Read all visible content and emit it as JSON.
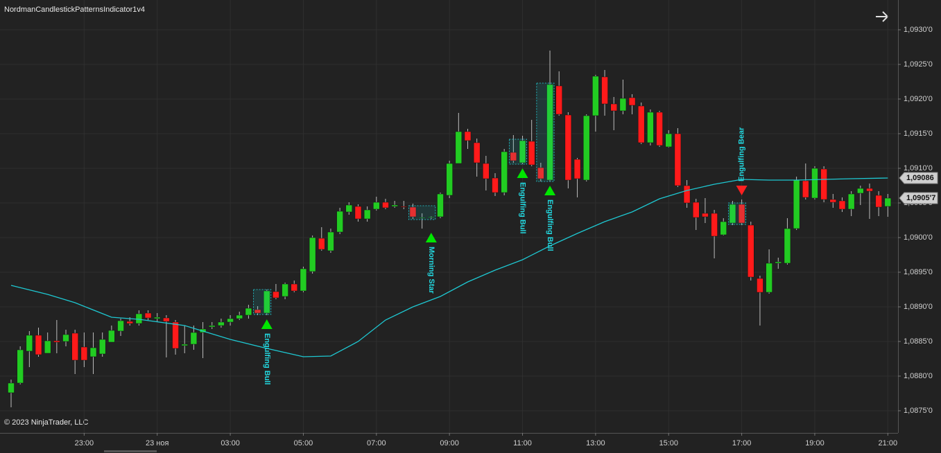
{
  "chart_data": {
    "type": "candlestick",
    "title": "NordmanCandlestickPatternsIndicator1v4",
    "copyright": "© 2023 NinjaTrader, LLC",
    "categories": [
      null,
      null,
      null,
      null,
      null,
      null,
      null,
      null,
      "23:00",
      null,
      null,
      null,
      null,
      null,
      null,
      null,
      "23 ноя",
      null,
      null,
      null,
      null,
      null,
      null,
      null,
      "03:00",
      null,
      null,
      null,
      null,
      null,
      null,
      null,
      "05:00",
      null,
      null,
      null,
      null,
      null,
      null,
      null,
      "07:00",
      null,
      null,
      null,
      null,
      null,
      null,
      null,
      "09:00",
      null,
      null,
      null,
      null,
      null,
      null,
      null,
      "11:00",
      null,
      null,
      null,
      null,
      null,
      null,
      null,
      "13:00",
      null,
      null,
      null,
      null,
      null,
      null,
      null,
      "15:00",
      null,
      null,
      null,
      null,
      null,
      null,
      null,
      "17:00",
      null,
      null,
      null,
      null,
      null,
      null,
      null,
      "19:00",
      null,
      null,
      null,
      null,
      null,
      null,
      null,
      "21:00"
    ],
    "open": [
      1.08776,
      1.0879,
      1.08836,
      1.08859,
      1.08833,
      1.08851,
      1.0885,
      1.08862,
      1.08842,
      1.08828,
      1.08832,
      1.08849,
      1.08865,
      1.08879,
      1.08876,
      1.08891,
      1.08883,
      1.08884,
      1.08878,
      1.08844,
      1.08846,
      1.08863,
      1.08871,
      1.08873,
      1.08878,
      1.08883,
      1.08888,
      1.08896,
      1.08891,
      1.08922,
      1.08915,
      1.08933,
      1.08923,
      1.08951,
      1.08999,
      1.08981,
      1.09008,
      1.09037,
      1.09045,
      1.09027,
      1.09041,
      1.09051,
      1.09045,
      1.09045,
      1.09044,
      1.09028,
      1.09029,
      1.0903,
      1.09061,
      1.09107,
      1.09153,
      1.09137,
      1.09107,
      1.09086,
      1.09065,
      1.09123,
      1.09108,
      1.09139,
      1.09101,
      1.09083,
      1.09219,
      1.09177,
      1.09113,
      1.09083,
      1.09176,
      1.09232,
      1.09193,
      1.09183,
      1.09202,
      1.0919,
      1.09137,
      1.09181,
      1.09131,
      1.0915,
      1.09075,
      1.09051,
      1.09035,
      1.09035,
      1.09004,
      1.09021,
      1.09048,
      1.09018,
      1.08941,
      1.08921,
      1.08963,
      1.08963,
      1.09013,
      1.09082,
      1.09057,
      1.09099,
      1.09055,
      1.09053,
      1.09041,
      1.09064,
      1.09071,
      1.09061,
      1.09045
    ],
    "high": [
      1.08795,
      1.08843,
      1.08865,
      1.0887,
      1.08863,
      1.08881,
      1.08867,
      1.08867,
      1.08863,
      1.08863,
      1.08863,
      1.08873,
      1.08883,
      1.08885,
      1.08895,
      1.08895,
      1.08891,
      1.08888,
      1.08881,
      1.08873,
      1.08873,
      1.08878,
      1.08878,
      1.08883,
      1.08888,
      1.08893,
      1.08903,
      1.08901,
      1.08925,
      1.08933,
      1.08935,
      1.08938,
      1.08958,
      1.09003,
      1.09015,
      1.09013,
      1.09043,
      1.09051,
      1.09048,
      1.09045,
      1.09059,
      1.09056,
      1.09053,
      1.09053,
      1.09049,
      1.09035,
      1.09031,
      1.09065,
      1.09111,
      1.0918,
      1.09157,
      1.09143,
      1.09118,
      1.09093,
      1.09128,
      1.09148,
      1.09147,
      1.0917,
      1.09108,
      1.0927,
      1.0924,
      1.09181,
      1.09115,
      1.09178,
      1.09235,
      1.09242,
      1.09203,
      1.09228,
      1.09207,
      1.09195,
      1.09185,
      1.09183,
      1.09155,
      1.09158,
      1.09083,
      1.09056,
      1.09057,
      1.0904,
      1.09028,
      1.09053,
      1.09055,
      1.09023,
      1.08945,
      1.08983,
      1.08971,
      1.09028,
      1.09088,
      1.09107,
      1.09103,
      1.09103,
      1.09063,
      1.09058,
      1.09067,
      1.09075,
      1.09078,
      1.09067,
      1.09063
    ],
    "low": [
      1.08755,
      1.08788,
      1.08813,
      1.08828,
      1.08833,
      1.08833,
      1.08843,
      1.08803,
      1.08813,
      1.08803,
      1.08828,
      1.08849,
      1.08858,
      1.08873,
      1.08873,
      1.08881,
      1.08878,
      1.08827,
      1.08831,
      1.08833,
      1.08838,
      1.08826,
      1.08868,
      1.0887,
      1.08873,
      1.08881,
      1.08883,
      1.08888,
      1.08888,
      1.08911,
      1.08911,
      1.08921,
      1.08921,
      1.08948,
      1.08981,
      1.08978,
      1.09005,
      1.09033,
      1.09023,
      1.09023,
      1.09039,
      1.09041,
      1.09043,
      1.09041,
      1.09027,
      1.09013,
      1.09027,
      1.09028,
      1.09057,
      1.09107,
      1.09128,
      1.09088,
      1.09068,
      1.0906,
      1.09061,
      1.09108,
      1.09106,
      1.09103,
      1.09081,
      1.09081,
      1.09176,
      1.09071,
      1.09058,
      1.09081,
      1.09153,
      1.09176,
      1.09155,
      1.09178,
      1.09178,
      1.09135,
      1.09133,
      1.09131,
      1.0913,
      1.09073,
      1.09043,
      1.09011,
      1.09021,
      1.0897,
      1.09003,
      1.09018,
      1.09018,
      1.08938,
      1.08873,
      1.08919,
      1.08955,
      1.08961,
      1.09011,
      1.09055,
      1.09055,
      1.09051,
      1.09043,
      1.09037,
      1.09031,
      1.09047,
      1.09027,
      1.09031,
      1.0903
    ],
    "close": [
      1.0879,
      1.08838,
      1.08859,
      1.08831,
      1.08851,
      1.08849,
      1.0886,
      1.08823,
      1.08823,
      1.08841,
      1.08853,
      1.08866,
      1.0888,
      1.08876,
      1.0889,
      1.08884,
      1.08885,
      1.08879,
      1.0884,
      1.08846,
      1.08863,
      1.08868,
      1.08873,
      1.08878,
      1.08883,
      1.08888,
      1.08898,
      1.08891,
      1.08923,
      1.08913,
      1.08933,
      1.08923,
      1.08955,
      1.09,
      1.08983,
      1.09008,
      1.09038,
      1.09047,
      1.09027,
      1.0904,
      1.09051,
      1.09043,
      1.09047,
      1.09044,
      1.0903,
      1.09029,
      1.0903,
      1.09063,
      1.09107,
      1.09153,
      1.0914,
      1.09108,
      1.09085,
      1.09065,
      1.09124,
      1.09111,
      1.0914,
      1.09105,
      1.09085,
      1.09221,
      1.09178,
      1.09083,
      1.09085,
      1.09176,
      1.09233,
      1.09193,
      1.09183,
      1.09201,
      1.09191,
      1.09137,
      1.09181,
      1.09133,
      1.0915,
      1.09075,
      1.0905,
      1.09029,
      1.0903,
      1.09002,
      1.09023,
      1.09048,
      1.09021,
      1.08943,
      1.08921,
      1.08963,
      1.08965,
      1.09013,
      1.09083,
      1.09058,
      1.091,
      1.09055,
      1.09051,
      1.09041,
      1.09063,
      1.09071,
      1.09067,
      1.09044,
      1.09057
    ],
    "close_label": "1,0905'7",
    "up_color": "#22cc22",
    "down_color": "#ff1a1a",
    "wick_color": "#bdbdbd",
    "moving_average": {
      "color": "#1ec8d2",
      "x": [
        0,
        4,
        7,
        11,
        14,
        19,
        24,
        28,
        32,
        35,
        38,
        41,
        44,
        47,
        50,
        53,
        56,
        59,
        62,
        65,
        68,
        71,
        74,
        77,
        80,
        83,
        86,
        89,
        92,
        96
      ],
      "values": [
        1.08931,
        1.08918,
        1.08906,
        1.08885,
        1.08882,
        1.08873,
        1.08853,
        1.0884,
        1.08828,
        1.08829,
        1.0885,
        1.08881,
        1.089,
        1.08915,
        1.08936,
        1.08953,
        1.08968,
        1.08988,
        1.09006,
        1.09023,
        1.09037,
        1.09056,
        1.09068,
        1.09077,
        1.09084,
        1.09083,
        1.09083,
        1.09084,
        1.09085,
        1.09086
      ],
      "value_label": "1,09086"
    },
    "patterns": [
      {
        "label": "Engulfing Bull",
        "start": 27,
        "end": 28,
        "direction": "bull"
      },
      {
        "label": "Morning Star",
        "start": 44,
        "end": 46,
        "direction": "bull"
      },
      {
        "label": "Engulfing Bull",
        "start": 55,
        "end": 56,
        "direction": "bull"
      },
      {
        "label": "Engulfing Bull",
        "start": 58,
        "end": 59,
        "direction": "bull"
      },
      {
        "label": "Engulfing Bear",
        "start": 79,
        "end": 80,
        "direction": "bear"
      }
    ],
    "pattern_color": "#22d8e0",
    "bull_arrow_color": "#00e600",
    "bear_arrow_color": "#ff2020",
    "ylim": [
      1.08718,
      1.09343
    ],
    "yticks": [
      {
        "value": 1.093,
        "label": "1,0930'0"
      },
      {
        "value": 1.0925,
        "label": "1,0925'0"
      },
      {
        "value": 1.092,
        "label": "1,0920'0"
      },
      {
        "value": 1.0915,
        "label": "1,0915'0"
      },
      {
        "value": 1.091,
        "label": "1,0910'0"
      },
      {
        "value": 1.0905,
        "label": "1,0905'0"
      },
      {
        "value": 1.09,
        "label": "1,0900'0"
      },
      {
        "value": 1.0895,
        "label": "1,0895'0"
      },
      {
        "value": 1.089,
        "label": "1,0890'0"
      },
      {
        "value": 1.0885,
        "label": "1,0885'0"
      },
      {
        "value": 1.088,
        "label": "1,0880'0"
      },
      {
        "value": 1.0875,
        "label": "1,0875'0"
      }
    ],
    "grid": true
  }
}
